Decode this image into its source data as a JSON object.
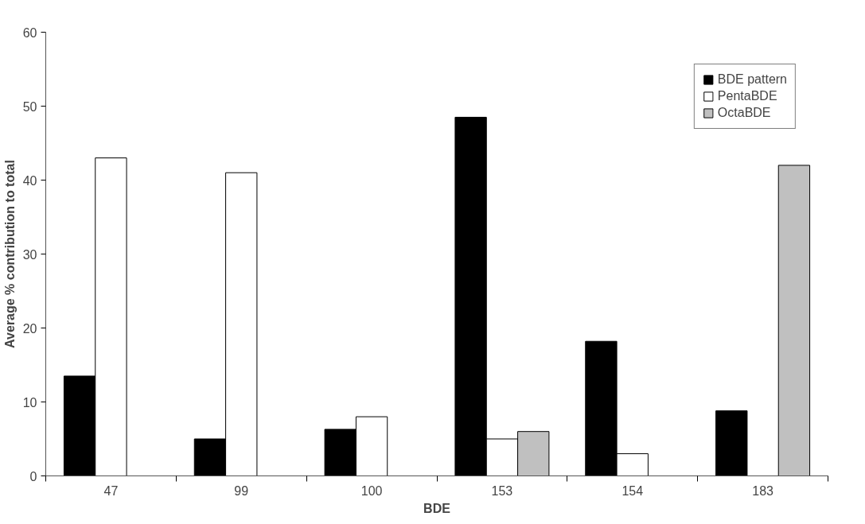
{
  "chart_data": {
    "type": "bar",
    "xlabel": "BDE",
    "ylabel": "Average % contribution to total",
    "categories": [
      "47",
      "99",
      "100",
      "153",
      "154",
      "183"
    ],
    "series": [
      {
        "name": "BDE pattern",
        "color": "#000000",
        "values": [
          13.5,
          5,
          6.3,
          48.5,
          18.2,
          8.8
        ]
      },
      {
        "name": "PentaBDE",
        "color": "#ffffff",
        "values": [
          43,
          41,
          8,
          5,
          3,
          null
        ]
      },
      {
        "name": "OctaBDE",
        "color": "#c0c0c0",
        "values": [
          null,
          null,
          null,
          6,
          null,
          42
        ]
      }
    ],
    "ylim": [
      0,
      60
    ],
    "yticks": [
      0,
      10,
      20,
      30,
      40,
      50,
      60
    ],
    "grid": false,
    "legend": "top right"
  }
}
